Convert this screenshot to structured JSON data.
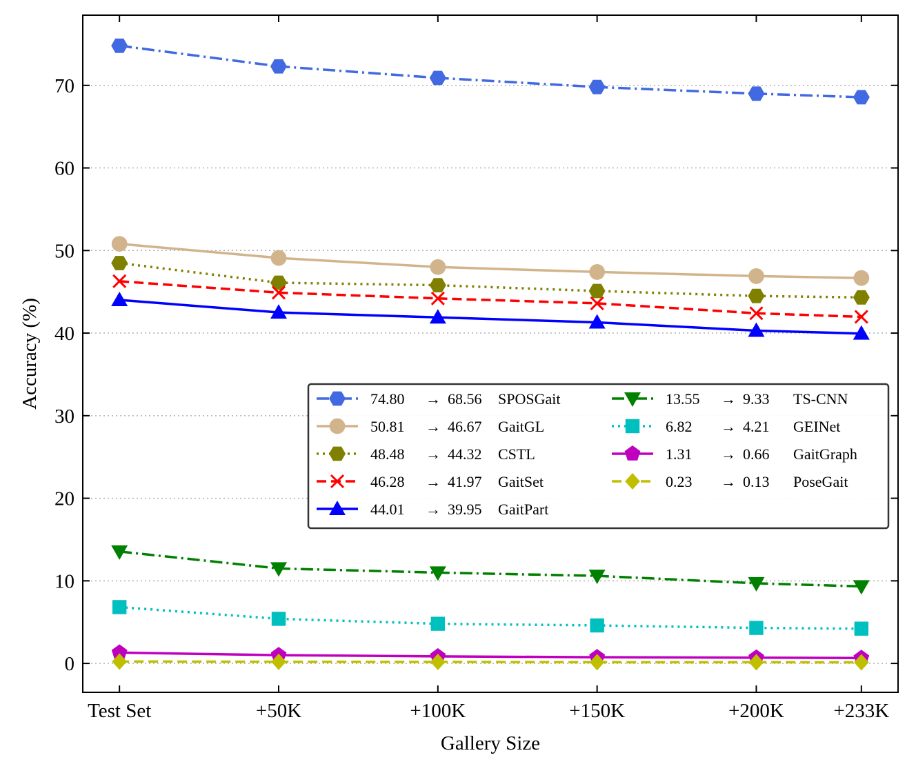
{
  "chart_data": {
    "type": "line",
    "title": "",
    "xlabel": "Gallery Size",
    "ylabel": "Accuracy (%)",
    "categories": [
      "Test Set",
      "+50K",
      "+100K",
      "+150K",
      "+200K",
      "+233K"
    ],
    "x": [
      0,
      50,
      100,
      150,
      200,
      233
    ],
    "ylim": [
      -3.5,
      78.5
    ],
    "yticks": [
      0,
      10,
      20,
      30,
      40,
      50,
      60,
      70
    ],
    "grid": "horizontal-dotted",
    "legend_position": "center-right",
    "series": [
      {
        "name": "SPOSGait",
        "start": "74.80",
        "end": "68.56",
        "color": "#4169e1",
        "marker": "hexagon",
        "linestyle": "dashdot",
        "values": [
          74.8,
          72.3,
          70.9,
          69.8,
          69.0,
          68.56
        ]
      },
      {
        "name": "GaitGL",
        "start": "50.81",
        "end": "46.67",
        "color": "#d2b48c",
        "marker": "circle",
        "linestyle": "solid",
        "values": [
          50.81,
          49.1,
          48.0,
          47.4,
          46.9,
          46.67
        ]
      },
      {
        "name": "CSTL",
        "start": "48.48",
        "end": "44.32",
        "color": "#808000",
        "marker": "hexagon",
        "linestyle": "dotted",
        "values": [
          48.48,
          46.1,
          45.8,
          45.1,
          44.5,
          44.32
        ]
      },
      {
        "name": "GaitSet",
        "start": "46.28",
        "end": "41.97",
        "color": "#ff0000",
        "marker": "x",
        "linestyle": "dashed",
        "values": [
          46.28,
          44.9,
          44.2,
          43.6,
          42.4,
          41.97
        ]
      },
      {
        "name": "GaitPart",
        "start": "44.01",
        "end": "39.95",
        "color": "#0000ff",
        "marker": "triangle-up",
        "linestyle": "solid",
        "values": [
          44.01,
          42.5,
          41.9,
          41.3,
          40.3,
          39.95
        ]
      },
      {
        "name": "TS-CNN",
        "start": "13.55",
        "end": "9.33",
        "color": "#008000",
        "marker": "triangle-down",
        "linestyle": "dashdot",
        "values": [
          13.55,
          11.5,
          11.0,
          10.6,
          9.7,
          9.33
        ]
      },
      {
        "name": "GEINet",
        "start": "6.82",
        "end": "4.21",
        "color": "#00bfbf",
        "marker": "square",
        "linestyle": "dotted",
        "values": [
          6.82,
          5.4,
          4.8,
          4.6,
          4.3,
          4.21
        ]
      },
      {
        "name": "GaitGraph",
        "start": "1.31",
        "end": "0.66",
        "color": "#bf00bf",
        "marker": "pentagon",
        "linestyle": "solid",
        "values": [
          1.31,
          1.0,
          0.85,
          0.75,
          0.7,
          0.66
        ]
      },
      {
        "name": "PoseGait",
        "start": "0.23",
        "end": "0.13",
        "color": "#bfbf00",
        "marker": "diamond",
        "linestyle": "dashed",
        "values": [
          0.23,
          0.2,
          0.18,
          0.15,
          0.14,
          0.13
        ]
      }
    ]
  }
}
